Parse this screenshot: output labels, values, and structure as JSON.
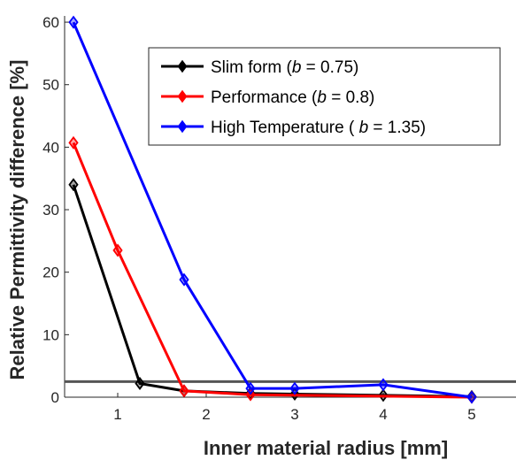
{
  "chart_data": {
    "type": "line",
    "xlabel": "Inner material radius [mm]",
    "ylabel": "Relative Permittivity difference [%]",
    "xlim": [
      0.4,
      5.5
    ],
    "ylim": [
      0,
      61
    ],
    "xticks": [
      1,
      2,
      3,
      4,
      5
    ],
    "yticks": [
      0,
      10,
      20,
      30,
      40,
      50,
      60
    ],
    "grid": false,
    "legend_position": "top-right",
    "reference_line": {
      "y": 2.5,
      "color": "#555555"
    },
    "series": [
      {
        "name": "Slim form (b = 0.75)",
        "label_prefix": "Slim form (",
        "label_var": "b",
        "label_suffix": " = 0.75)",
        "color": "#000000",
        "x": [
          0.5,
          1.25,
          1.75,
          2.5,
          3,
          4,
          5
        ],
        "y": [
          34,
          2.2,
          1.0,
          0.6,
          0.5,
          0.3,
          0.1
        ]
      },
      {
        "name": "Performance (b = 0.8)",
        "label_prefix": "Performance (",
        "label_var": "b",
        "label_suffix": " = 0.8)",
        "color": "#ff0000",
        "x": [
          0.5,
          1.0,
          1.75,
          2.5,
          5
        ],
        "y": [
          40.7,
          23.5,
          1.0,
          0.4,
          0.0
        ]
      },
      {
        "name": "High Temperature ( b = 1.35)",
        "label_prefix": "High Temperature ( ",
        "label_var": "b",
        "label_suffix": " = 1.35)",
        "color": "#0000ff",
        "x": [
          0.5,
          1.75,
          2.5,
          3,
          4,
          5
        ],
        "y": [
          60.0,
          18.8,
          1.4,
          1.4,
          2.0,
          0.0
        ]
      }
    ]
  }
}
